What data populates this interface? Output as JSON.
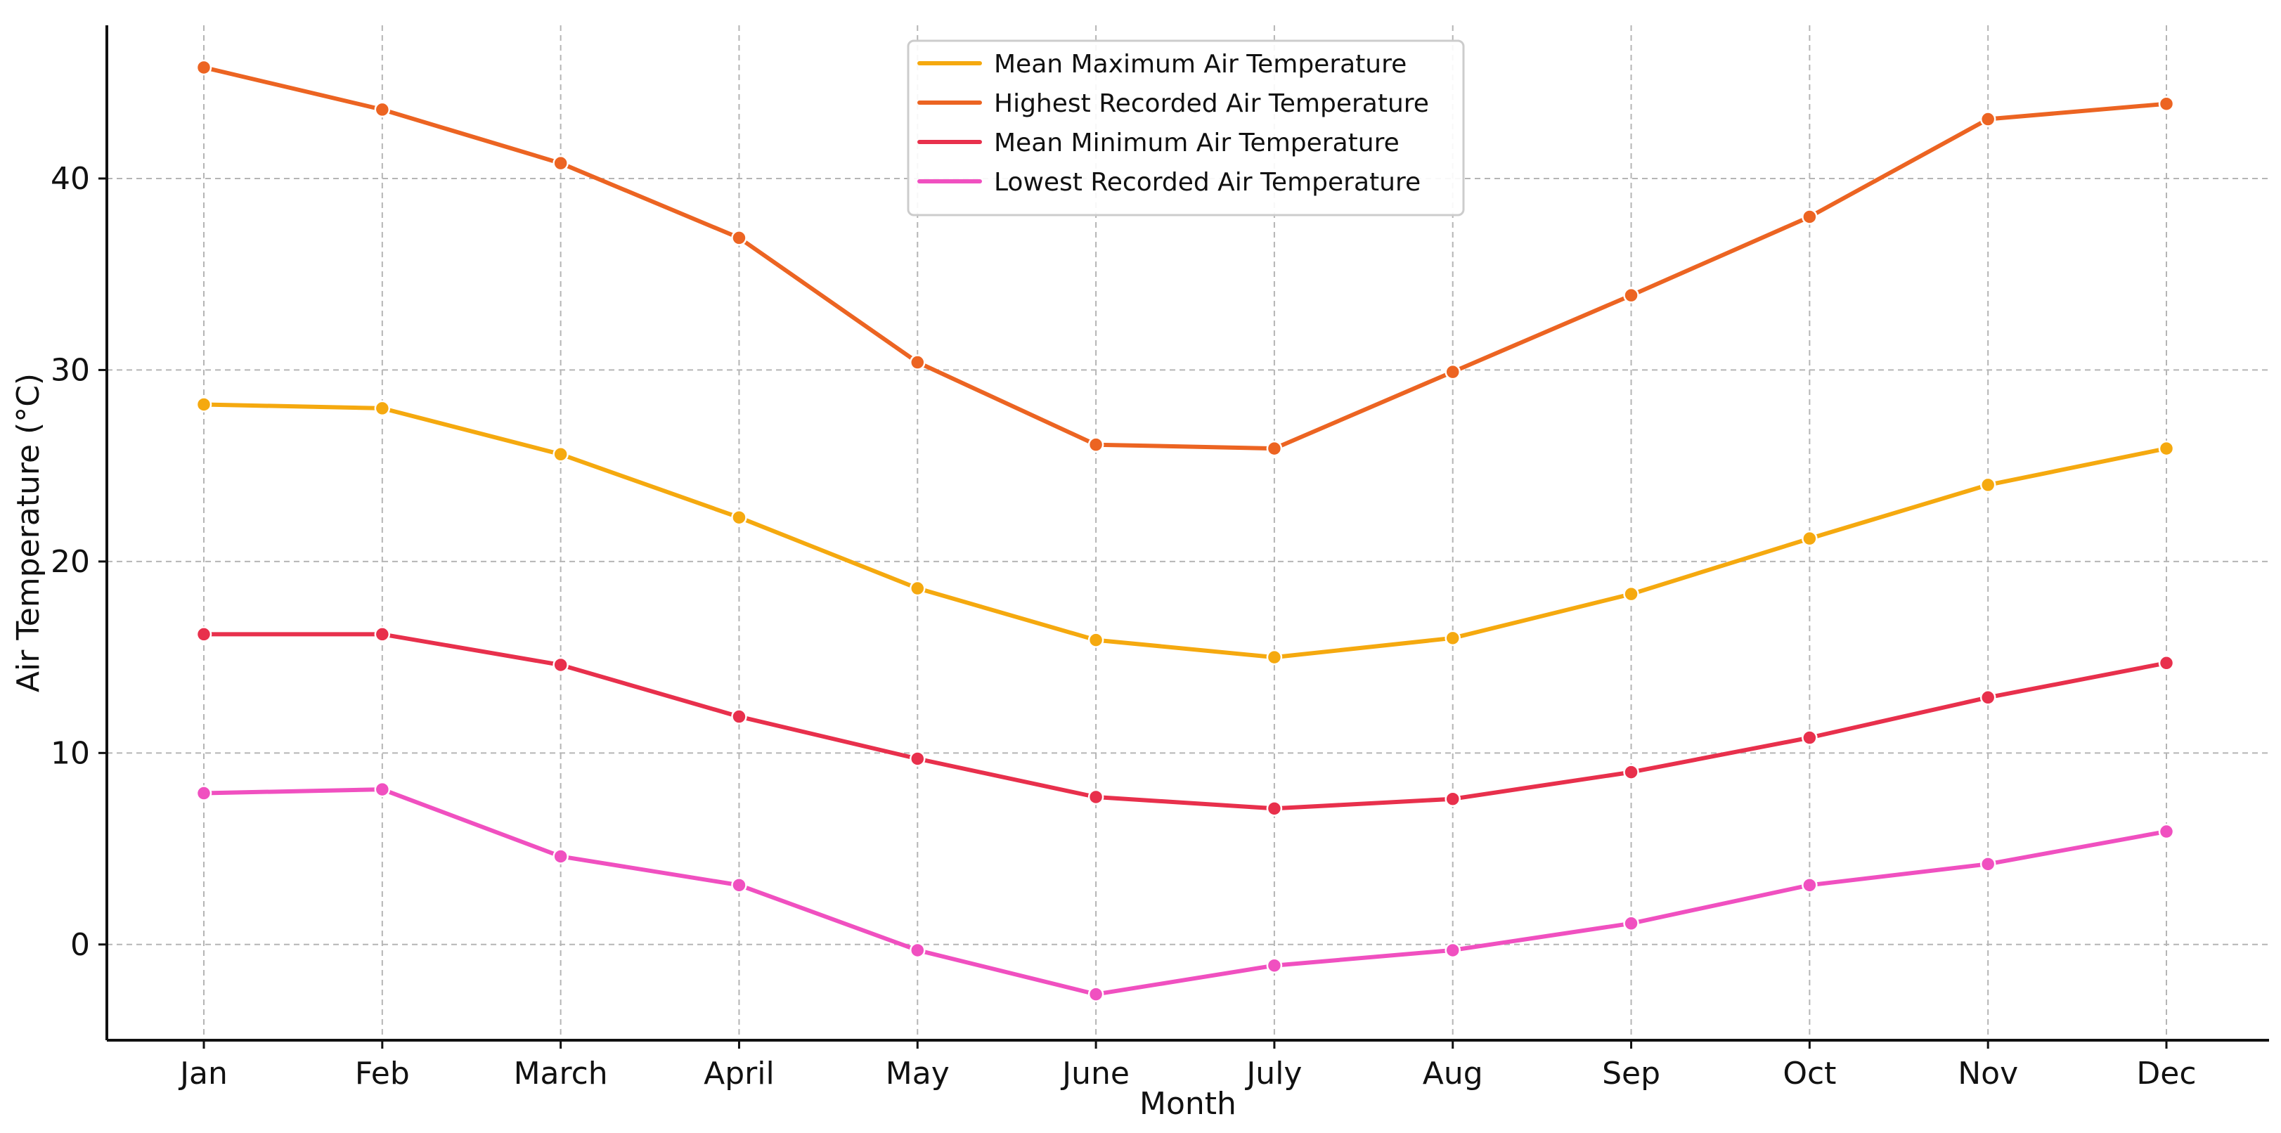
{
  "chart_data": {
    "type": "line",
    "title": "",
    "xlabel": "Month",
    "ylabel": "Air Temperature (°C)",
    "categories": [
      "Jan",
      "Feb",
      "March",
      "April",
      "May",
      "June",
      "July",
      "Aug",
      "Sep",
      "Oct",
      "Nov",
      "Dec"
    ],
    "ylim": [
      -5,
      48
    ],
    "yticks": [
      0,
      10,
      20,
      30,
      40
    ],
    "grid": true,
    "legend_position": "top-center",
    "series": [
      {
        "name": "Mean Maximum Air Temperature",
        "color": "#f5a90f",
        "values": [
          28.2,
          28.0,
          25.6,
          22.3,
          18.6,
          15.9,
          15.0,
          16.0,
          18.3,
          21.2,
          24.0,
          25.9
        ]
      },
      {
        "name": "Highest Recorded Air Temperature",
        "color": "#ec6422",
        "values": [
          45.8,
          43.6,
          40.8,
          36.9,
          30.4,
          26.1,
          25.9,
          29.9,
          33.9,
          38.0,
          43.1,
          43.9
        ]
      },
      {
        "name": "Mean Minimum Air Temperature",
        "color": "#e8304c",
        "values": [
          16.2,
          16.2,
          14.6,
          11.9,
          9.7,
          7.7,
          7.1,
          7.6,
          9.0,
          10.8,
          12.9,
          14.7
        ]
      },
      {
        "name": "Lowest Recorded Air Temperature",
        "color": "#f050c0",
        "values": [
          7.9,
          8.1,
          4.6,
          3.1,
          -0.3,
          -2.6,
          -1.1,
          -0.3,
          1.1,
          3.1,
          4.2,
          5.9
        ]
      }
    ]
  }
}
